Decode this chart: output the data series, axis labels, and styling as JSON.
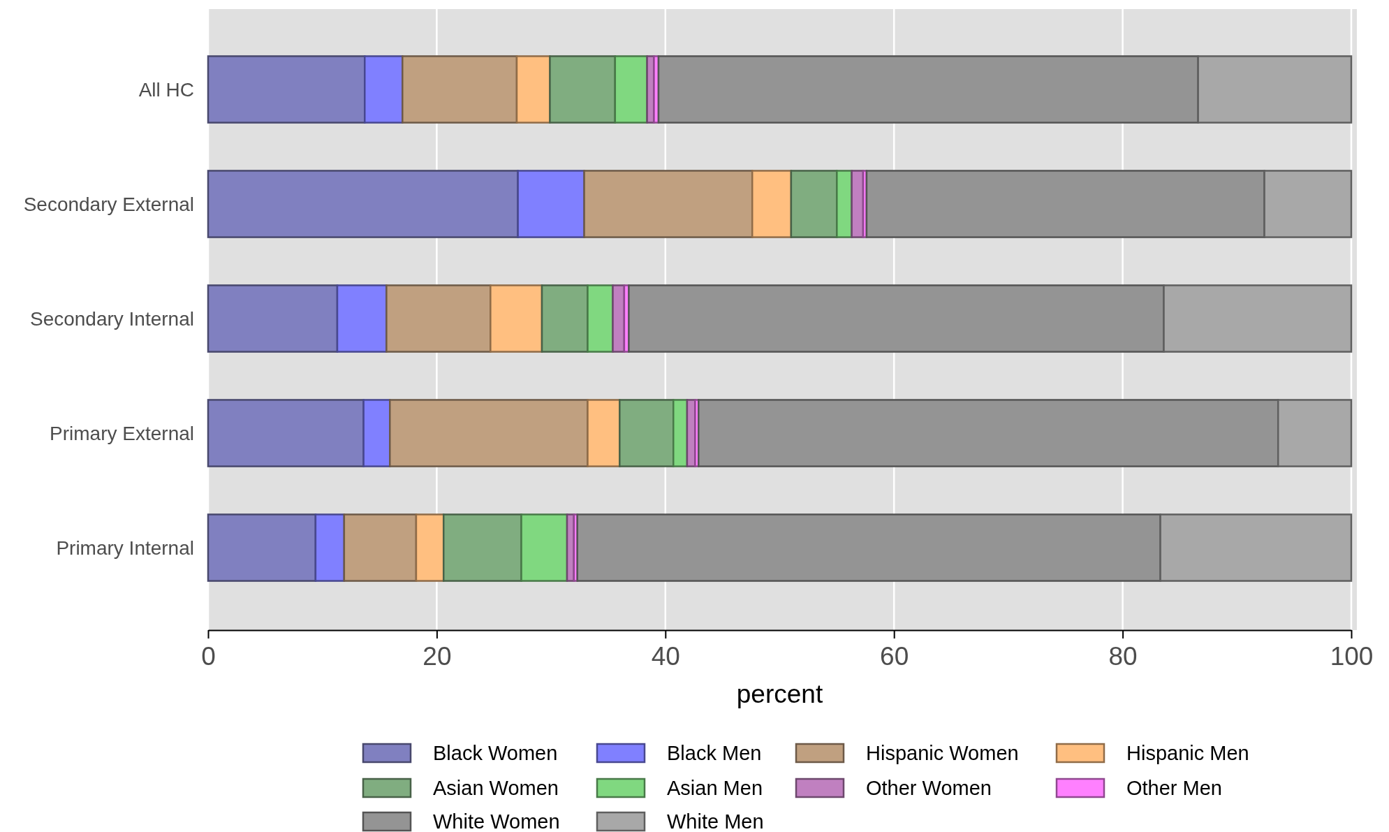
{
  "chart_data": {
    "type": "bar",
    "orientation": "horizontal",
    "stacked": true,
    "xlabel": "percent",
    "categories": [
      "All HC",
      "Secondary External",
      "Secondary Internal",
      "Primary External",
      "Primary Internal"
    ],
    "xlim": [
      0,
      100
    ],
    "xticks": [
      0,
      20,
      40,
      60,
      80,
      100
    ],
    "grid": "x",
    "legend": "bottom",
    "series": [
      {
        "name": "Black Women",
        "color": "#8080c0",
        "values": [
          13.7,
          27.1,
          11.3,
          13.6,
          9.4
        ]
      },
      {
        "name": "Black Men",
        "color": "#8080ff",
        "values": [
          3.3,
          5.8,
          4.3,
          2.3,
          2.5
        ]
      },
      {
        "name": "Hispanic Women",
        "color": "#c0a080",
        "values": [
          10.0,
          14.7,
          9.1,
          17.3,
          6.3
        ]
      },
      {
        "name": "Hispanic Men",
        "color": "#ffbf80",
        "values": [
          2.9,
          3.4,
          4.5,
          2.8,
          2.4
        ]
      },
      {
        "name": "Asian Women",
        "color": "#80ad80",
        "values": [
          5.7,
          4.0,
          4.0,
          4.7,
          6.8
        ]
      },
      {
        "name": "Asian Men",
        "color": "#80d880",
        "values": [
          2.8,
          1.3,
          2.2,
          1.2,
          4.0
        ]
      },
      {
        "name": "Other Women",
        "color": "#c080c0",
        "values": [
          0.6,
          1.0,
          1.0,
          0.7,
          0.6
        ]
      },
      {
        "name": "Other Men",
        "color": "#ff80ff",
        "values": [
          0.4,
          0.3,
          0.4,
          0.3,
          0.3
        ]
      },
      {
        "name": "White Women",
        "color": "#949494",
        "values": [
          47.2,
          34.8,
          46.8,
          50.7,
          51.0
        ]
      },
      {
        "name": "White Men",
        "color": "#a8a8a8",
        "values": [
          13.4,
          7.6,
          16.4,
          6.4,
          16.7
        ]
      }
    ]
  }
}
